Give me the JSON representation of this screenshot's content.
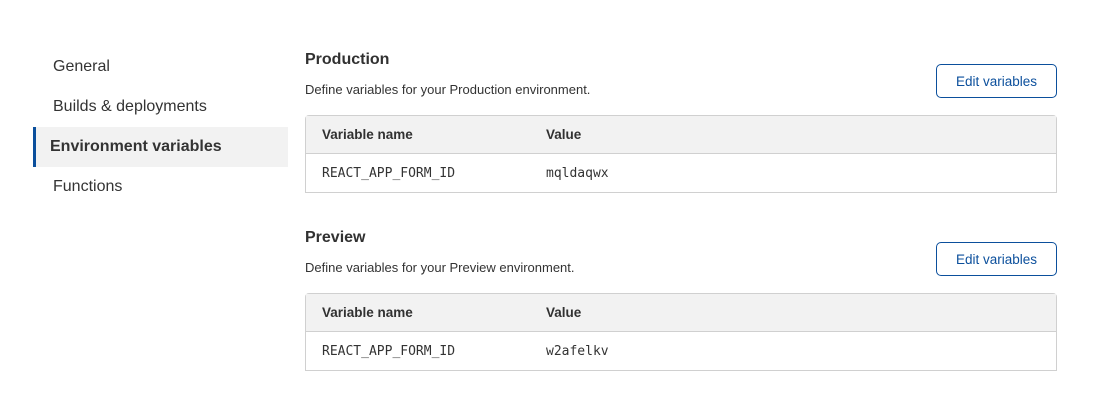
{
  "sidebar": {
    "items": [
      {
        "label": "General",
        "active": false
      },
      {
        "label": "Builds & deployments",
        "active": false
      },
      {
        "label": "Environment variables",
        "active": true
      },
      {
        "label": "Functions",
        "active": false
      }
    ]
  },
  "sections": [
    {
      "title": "Production",
      "description": "Define variables for your Production environment.",
      "edit_label": "Edit variables",
      "columns": [
        "Variable name",
        "Value"
      ],
      "rows": [
        {
          "name": "REACT_APP_FORM_ID",
          "value": "mqldaqwx"
        }
      ]
    },
    {
      "title": "Preview",
      "description": "Define variables for your Preview environment.",
      "edit_label": "Edit variables",
      "columns": [
        "Variable name",
        "Value"
      ],
      "rows": [
        {
          "name": "REACT_APP_FORM_ID",
          "value": "w2afelkv"
        }
      ]
    }
  ],
  "colors": {
    "accent": "#0b4f9c",
    "header_bg": "#f2f2f2"
  }
}
